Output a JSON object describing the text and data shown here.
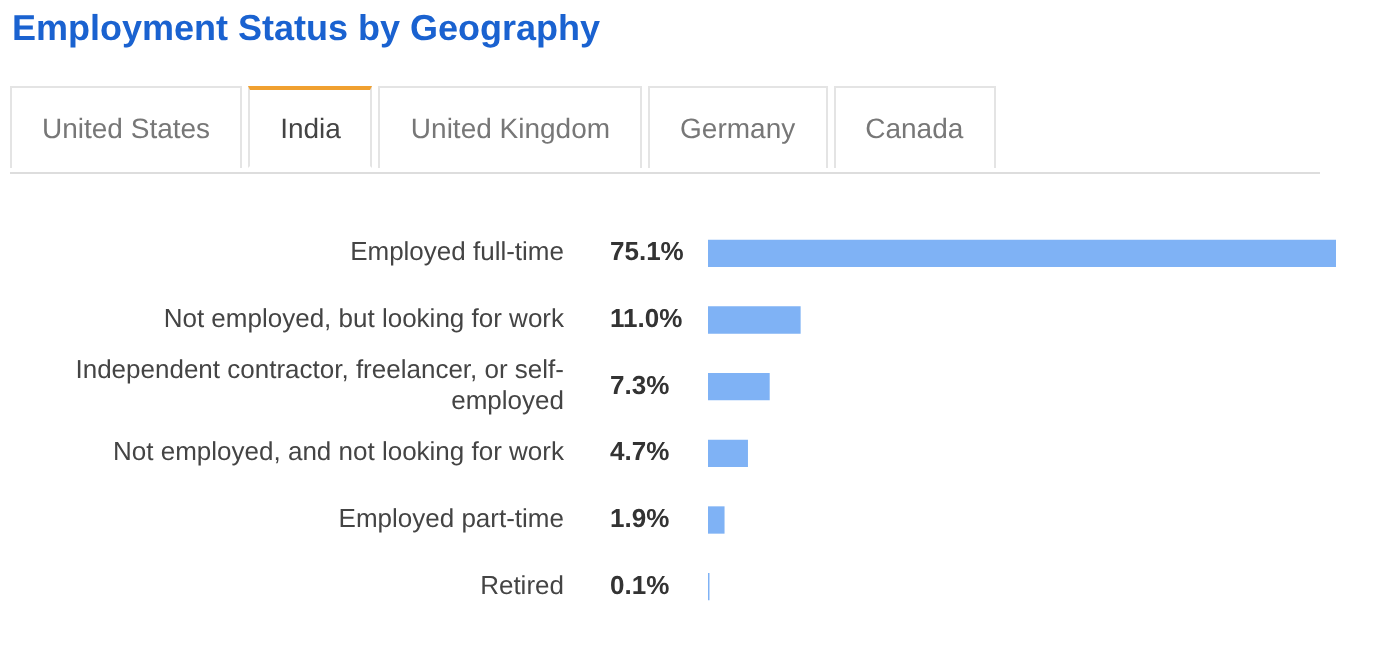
{
  "chart_data": {
    "type": "bar",
    "orientation": "horizontal",
    "title": "Employment Status by Geography",
    "annotations": [
      "United States",
      "India",
      "United Kingdom",
      "Germany",
      "Canada"
    ],
    "categories": [
      "Employed full-time",
      "Not employed, but looking for work",
      "Independent contractor, freelancer, or self-employed",
      "Not employed, and not looking for work",
      "Employed part-time",
      "Retired"
    ],
    "values": [
      75.1,
      11.0,
      7.3,
      4.7,
      1.9,
      0.1
    ],
    "value_labels": [
      "75.1%",
      "11.0%",
      "7.3%",
      "4.7%",
      "1.9%",
      "0.1%"
    ],
    "color": "#7fb2f5",
    "legend": false
  }
}
